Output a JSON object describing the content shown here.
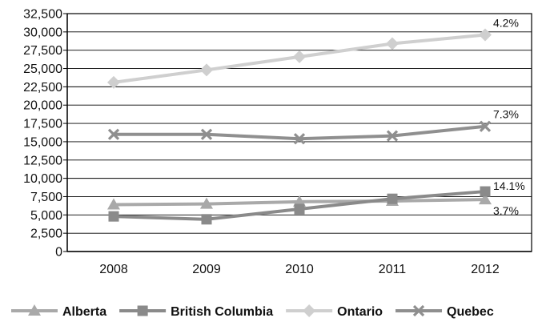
{
  "chart_data": {
    "type": "line",
    "title": "",
    "xlabel": "",
    "ylabel": "",
    "categories": [
      "2008",
      "2009",
      "2010",
      "2011",
      "2012"
    ],
    "ylim": [
      0,
      32500
    ],
    "ytick_step": 2500,
    "ytick_labels": [
      "0",
      "2,500",
      "5,000",
      "7,500",
      "10,000",
      "12,500",
      "15,000",
      "17,500",
      "20,000",
      "22,500",
      "25,000",
      "27,500",
      "30,000",
      "32,500"
    ],
    "grid": true,
    "legend_position": "bottom",
    "series": [
      {
        "name": "Alberta",
        "marker": "triangle",
        "color": "#a9a9a9",
        "values": [
          6400,
          6500,
          6800,
          6900,
          7100
        ],
        "end_label": "3.7%"
      },
      {
        "name": "British Columbia",
        "marker": "square",
        "color": "#8a8a8a",
        "values": [
          4800,
          4400,
          5800,
          7200,
          8200
        ],
        "end_label": "14.1%"
      },
      {
        "name": "Ontario",
        "marker": "diamond",
        "color": "#cfcfcf",
        "values": [
          23100,
          24800,
          26600,
          28400,
          29600
        ],
        "end_label": "4.2%"
      },
      {
        "name": "Quebec",
        "marker": "x",
        "color": "#8f8f8f",
        "values": [
          16000,
          16000,
          15400,
          15800,
          17100
        ],
        "end_label": "7.3%"
      }
    ]
  }
}
